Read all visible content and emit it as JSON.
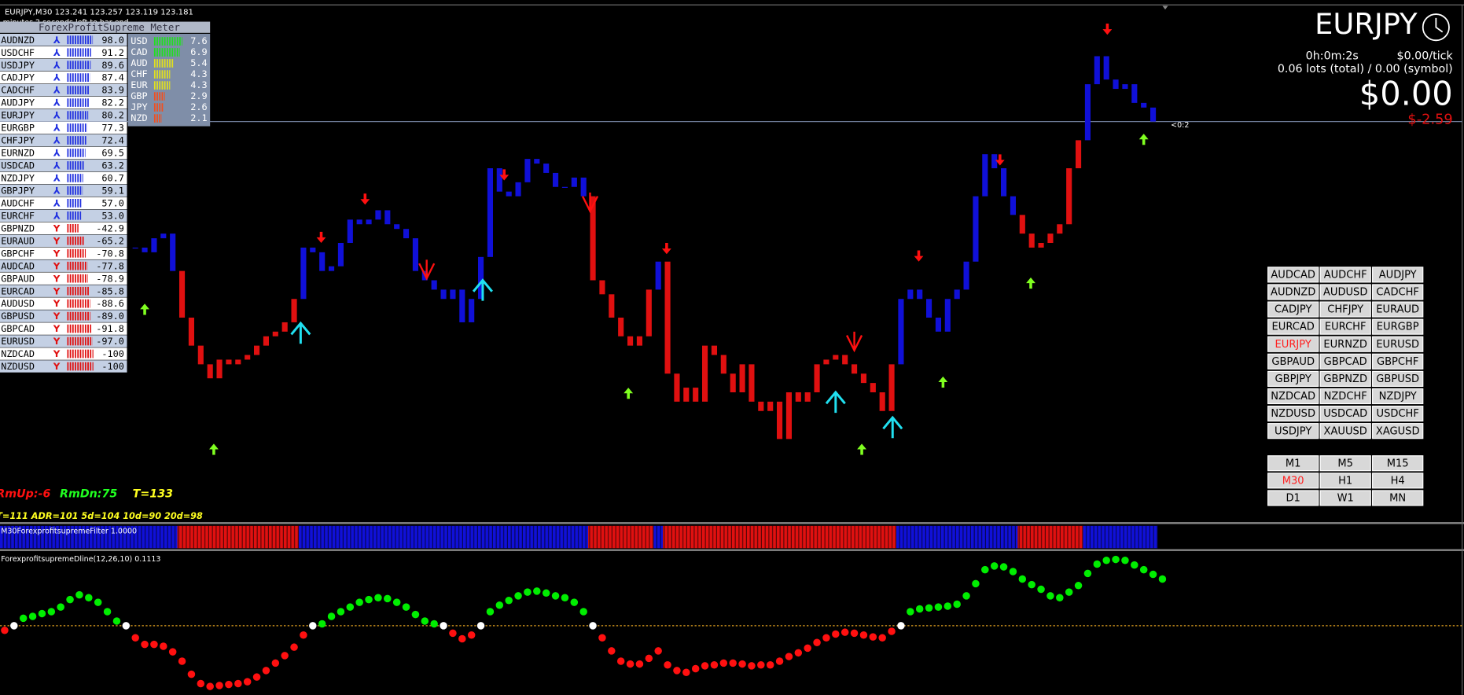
{
  "header": {
    "title": "EURJPY,M30  123.241 123.257 123.119 123.181",
    "timer": "minutes 2 seconds left to bar end"
  },
  "meter": {
    "title": "ForexProfitSupreme Meter",
    "pairs": {
      "names": [
        "AUDNZD",
        "USDCHF",
        "USDJPY",
        "CADJPY",
        "CADCHF",
        "AUDJPY",
        "EURJPY",
        "EURGBP",
        "CHFJPY",
        "EURNZD",
        "USDCAD",
        "NZDJPY",
        "GBPJPY",
        "AUDCHF",
        "EURCHF",
        "GBPNZD",
        "EURAUD",
        "GBPCHF",
        "AUDCAD",
        "GBPAUD",
        "EURCAD",
        "AUDUSD",
        "GBPUSD",
        "GBPCAD",
        "EURUSD",
        "NZDCAD",
        "NZDUSD"
      ],
      "values": [
        98.0,
        91.2,
        89.6,
        87.4,
        83.9,
        82.2,
        80.2,
        77.3,
        72.4,
        69.5,
        63.2,
        60.7,
        59.1,
        57.0,
        53.0,
        -42.9,
        -65.2,
        -70.8,
        -77.8,
        -78.9,
        -85.8,
        -88.6,
        -89.0,
        -91.8,
        -97.0,
        -100,
        -100
      ],
      "value_labels": [
        "98.0",
        "91.2",
        "89.6",
        "87.4",
        "83.9",
        "82.2",
        "80.2",
        "77.3",
        "72.4",
        "69.5",
        "63.2",
        "60.7",
        "59.1",
        "57.0",
        "53.0",
        "-42.9",
        "-65.2",
        "-70.8",
        "-77.8",
        "-78.9",
        "-85.8",
        "-88.6",
        "-89.0",
        "-91.8",
        "-97.0",
        "-100",
        "-100"
      ],
      "up_color": "#2030e0",
      "down_color": "#e01010"
    },
    "currencies": {
      "names": [
        "USD",
        "CAD",
        "AUD",
        "CHF",
        "EUR",
        "GBP",
        "JPY",
        "NZD"
      ],
      "values": [
        7.6,
        6.9,
        5.4,
        4.3,
        4.3,
        2.9,
        2.6,
        2.1
      ],
      "colors": [
        "#20e020",
        "#20e020",
        "#e0e020",
        "#e0e020",
        "#e0e020",
        "#f05020",
        "#f05020",
        "#f05020"
      ]
    }
  },
  "price_chart": {
    "type": "candlestick",
    "current_label": "<0:2",
    "close": [
      122.506,
      122.481,
      122.556,
      122.581,
      122.381,
      122.131,
      121.981,
      121.881,
      121.806,
      121.906,
      121.881,
      121.906,
      121.931,
      121.981,
      122.031,
      122.056,
      122.106,
      122.231,
      122.506,
      122.481,
      122.381,
      122.406,
      122.531,
      122.656,
      122.631,
      122.656,
      122.706,
      122.631,
      122.606,
      122.556,
      122.381,
      122.331,
      122.281,
      122.231,
      122.281,
      122.106,
      122.231,
      122.456,
      122.931,
      122.806,
      122.781,
      122.856,
      122.981,
      122.956,
      122.906,
      122.831,
      122.831,
      122.881,
      122.781,
      122.331,
      122.256,
      122.131,
      122.031,
      121.981,
      122.031,
      122.281,
      122.431,
      121.831,
      121.681,
      121.756,
      121.681,
      121.981,
      121.931,
      121.831,
      121.731,
      121.881,
      121.681,
      121.631,
      121.681,
      121.481,
      121.731,
      121.681,
      121.731,
      121.881,
      121.906,
      121.931,
      121.881,
      121.831,
      121.781,
      121.731,
      121.631,
      121.881,
      122.231,
      122.281,
      122.231,
      122.131,
      122.056,
      122.231,
      122.281,
      122.431,
      122.781,
      123.006,
      122.931,
      122.781,
      122.681,
      122.581,
      122.506,
      122.531,
      122.581,
      122.631,
      122.931,
      123.081,
      123.381,
      123.531,
      123.406,
      123.356,
      123.381,
      123.281,
      123.256,
      123.181
    ]
  },
  "filter": {
    "label": "M30ForexprofitsupremeFilter 1.0000",
    "segments": {
      "colors": [
        "#1010d8",
        "#e01010",
        "#1010d8",
        "#e01010",
        "#1010d8",
        "#e01010",
        "#1010d8",
        "#e01010",
        "#1010d8"
      ],
      "lengths": [
        19,
        13,
        31,
        7,
        1,
        25,
        13,
        7,
        8
      ]
    }
  },
  "dline": {
    "label": "ForexprofitsupremeDline(12,26,10) 0.1113",
    "up_color": "#00ee00",
    "down_color": "#ff1010",
    "zero_color": "#ffffff",
    "values": [
      -0.0111,
      0,
      0.0178,
      0.0223,
      0.0289,
      0.0334,
      0.0445,
      0.0623,
      0.0735,
      0.0668,
      0.0557,
      0.0334,
      0.0111,
      0,
      -0.0289,
      -0.0445,
      -0.0445,
      -0.049,
      -0.0623,
      -0.0846,
      -0.1158,
      -0.138,
      -0.1447,
      -0.1425,
      -0.1402,
      -0.138,
      -0.1336,
      -0.1224,
      -0.1068,
      -0.089,
      -0.0712,
      -0.0512,
      -0.0223,
      0,
      0.0045,
      0.0223,
      0.0334,
      0.0445,
      0.0557,
      0.0623,
      0.0668,
      0.0646,
      0.0557,
      0.0445,
      0.0267,
      0.0111,
      0.0045,
      0,
      -0.0178,
      -0.0312,
      -0.0223,
      0,
      0.0334,
      0.049,
      0.0601,
      0.0712,
      0.0801,
      0.0824,
      0.0779,
      0.0712,
      0.0668,
      0.0557,
      0.0334,
      0,
      -0.0289,
      -0.0601,
      -0.0846,
      -0.0913,
      -0.0913,
      -0.0779,
      -0.0601,
      -0.0935,
      -0.1068,
      -0.1113,
      -0.1024,
      -0.0957,
      -0.0935,
      -0.089,
      -0.089,
      -0.0913,
      -0.0957,
      -0.0935,
      -0.0935,
      -0.0846,
      -0.0735,
      -0.0646,
      -0.0534,
      -0.0401,
      -0.0289,
      -0.02,
      -0.0156,
      -0.0178,
      -0.0223,
      -0.0267,
      -0.0289,
      -0.0134,
      0,
      0.0334,
      0.0401,
      0.0423,
      0.0445,
      0.0467,
      0.0512,
      0.0712,
      0.1002,
      0.1336,
      0.1425,
      0.1402,
      0.1291,
      0.1113,
      0.0979,
      0.0868,
      0.0712,
      0.0668,
      0.0801,
      0.0957,
      0.1247,
      0.1469,
      0.1558,
      0.158,
      0.1558,
      0.1447,
      0.1336,
      0.1224,
      0.1113
    ]
  },
  "stats": {
    "rm_up": "RmUp:-6",
    "rm_dn": "RmDn:75",
    "total": "T=133",
    "adr": "T=111  ADR=101  5d=104  10d=90  20d=98"
  },
  "account": {
    "symbol": "EURJPY",
    "timer": "0h:0m:2s",
    "tick": "$0.00/tick",
    "lots": "0.06 lots (total) / 0.00 (symbol)",
    "profit": "$0.00",
    "loss": "$-2.59"
  },
  "symbols": {
    "labels": [
      "AUDCAD",
      "AUDCHF",
      "AUDJPY",
      "AUDNZD",
      "AUDUSD",
      "CADCHF",
      "CADJPY",
      "CHFJPY",
      "EURAUD",
      "EURCAD",
      "EURCHF",
      "EURGBP",
      "EURJPY",
      "EURNZD",
      "EURUSD",
      "GBPAUD",
      "GBPCAD",
      "GBPCHF",
      "GBPJPY",
      "GBPNZD",
      "GBPUSD",
      "NZDCAD",
      "NZDCHF",
      "NZDJPY",
      "NZDUSD",
      "USDCAD",
      "USDCHF",
      "USDJPY",
      "XAUUSD",
      "XAGUSD"
    ],
    "active": 12,
    "active_color": "#ff2020"
  },
  "timeframes": {
    "labels": [
      "M1",
      "M5",
      "M15",
      "M30",
      "H1",
      "H4",
      "D1",
      "W1",
      "MN"
    ],
    "active": 3,
    "active_color": "#ff2020"
  }
}
